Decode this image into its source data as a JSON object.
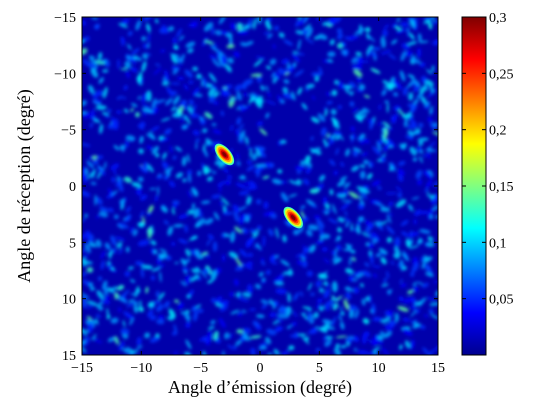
{
  "chart_data": {
    "type": "heatmap",
    "title": "",
    "xlabel": "Angle d’émission (degré)",
    "ylabel": "Angle de réception (degré)",
    "xlim": [
      -15,
      15
    ],
    "ylim": [
      -15,
      15
    ],
    "y_axis_reversed": true,
    "x_ticks": [
      "−15",
      "−10",
      "−5",
      "0",
      "5",
      "10",
      "15"
    ],
    "y_ticks": [
      "−15",
      "−10",
      "−5",
      "0",
      "5",
      "10",
      "15"
    ],
    "colorbar": {
      "colormap": "jet",
      "range": [
        0,
        0.3
      ],
      "ticks": [
        "0,05",
        "0,1",
        "0,15",
        "0,2",
        "0,25",
        "0,3"
      ]
    },
    "background_level": 0.04,
    "peaks": [
      {
        "x": -3.0,
        "y": -2.8,
        "value": 0.3
      },
      {
        "x": 2.8,
        "y": 2.8,
        "value": 0.3
      }
    ],
    "grid": false,
    "legend": "none"
  }
}
